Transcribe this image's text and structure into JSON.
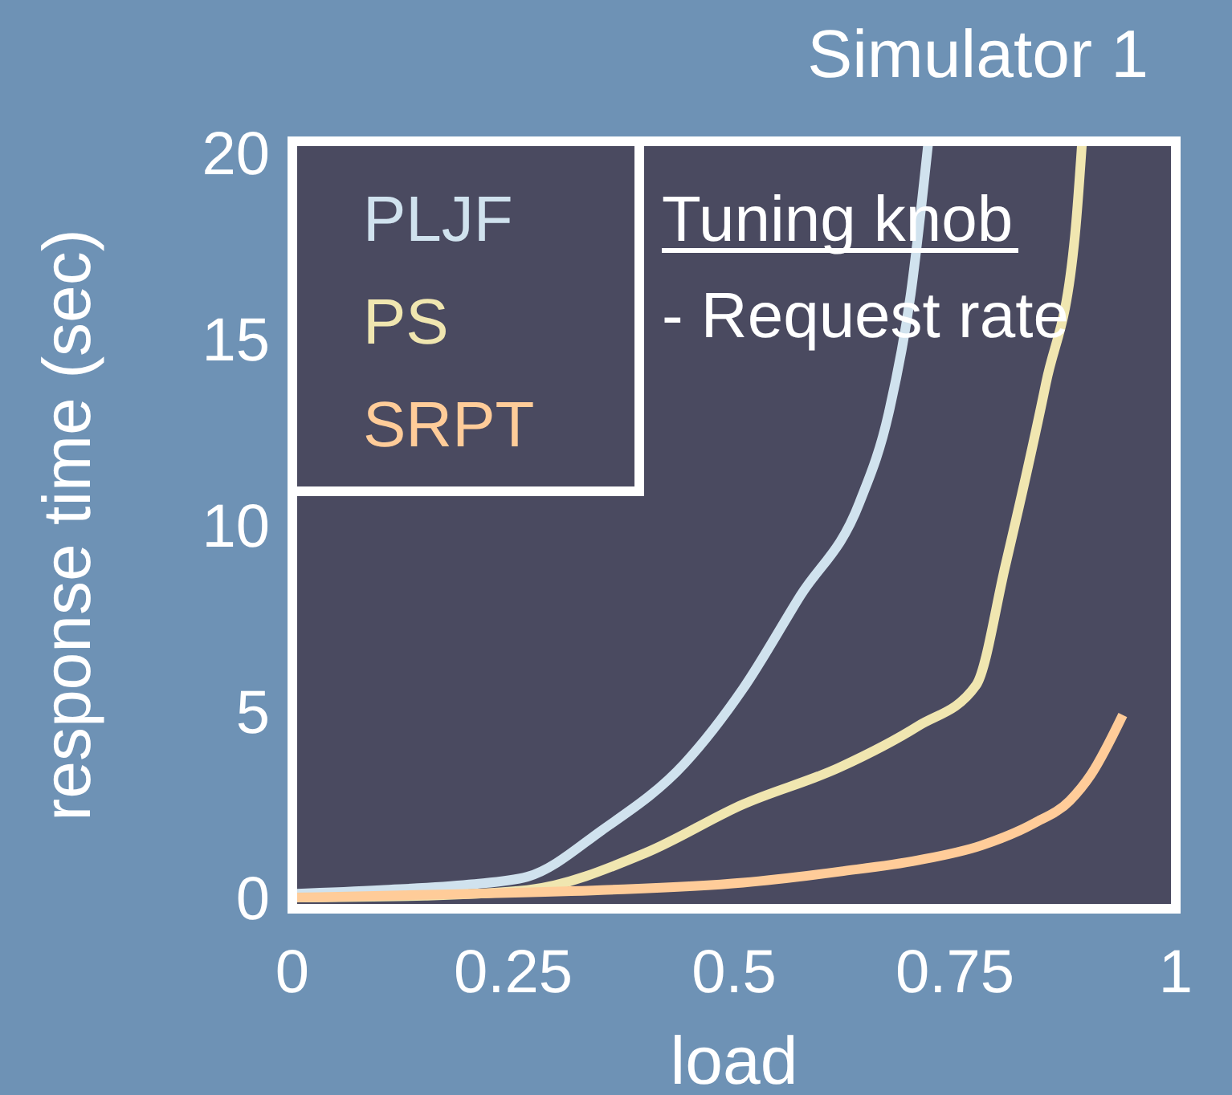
{
  "chart_data": {
    "type": "line",
    "title": "Simulator 1",
    "xlabel": "load",
    "ylabel": "response time (sec)",
    "annotations": [
      "Tuning knob",
      "- Request rate"
    ],
    "xlim": [
      0,
      1
    ],
    "xticks": [
      0,
      0.25,
      0.5,
      0.75,
      1
    ],
    "ylim": [
      -0.3,
      20.3
    ],
    "yticks": [
      0,
      5,
      10,
      15,
      20
    ],
    "legend": "top left",
    "grid": false,
    "marker": "none",
    "line_style": "solid",
    "series": [
      {
        "name": "PLJF",
        "color": "#d0e2ee",
        "x": [
          0,
          0.1,
          0.2,
          0.266,
          0.35,
          0.444,
          0.51,
          0.575,
          0.642,
          0.675,
          0.7,
          0.72
        ],
        "values": [
          0.1,
          0.2,
          0.35,
          0.56,
          1.8,
          3.6,
          5.6,
          8.1,
          10.6,
          13,
          16.2,
          20.3
        ]
      },
      {
        "name": "PS",
        "color": "#f0e6b0",
        "x": [
          0,
          0.15,
          0.266,
          0.4,
          0.51,
          0.62,
          0.708,
          0.774,
          0.807,
          0.853,
          0.886,
          0.894
        ],
        "values": [
          0,
          0.05,
          0.2,
          1.2,
          2.5,
          3.5,
          4.6,
          5.7,
          8.9,
          13.8,
          17.8,
          20.3
        ]
      },
      {
        "name": "SRPT",
        "color": "#ffcc99",
        "x": [
          0,
          0.2,
          0.35,
          0.51,
          0.62,
          0.708,
          0.78,
          0.84,
          0.88,
          0.904,
          0.94
        ],
        "values": [
          0,
          0.1,
          0.2,
          0.4,
          0.7,
          1.0,
          1.4,
          2.0,
          2.6,
          3.3,
          4.9
        ]
      }
    ]
  }
}
